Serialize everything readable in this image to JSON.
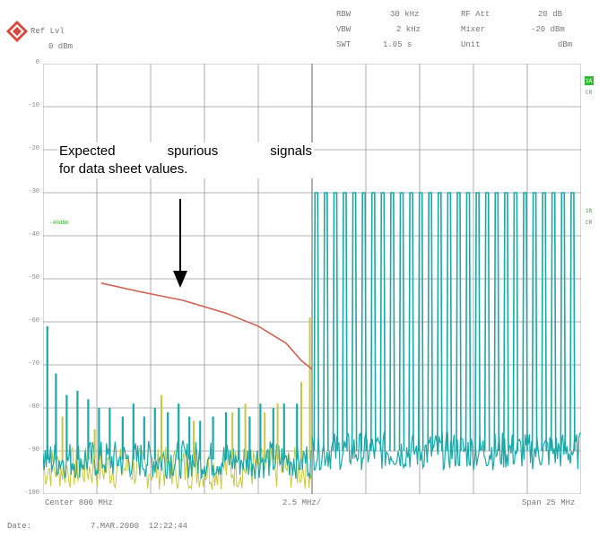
{
  "header": {
    "ref_label": "Ref Lvl",
    "ref_value": "0 dBm",
    "rbw_label": "RBW",
    "rbw_value": "30 kHz",
    "vbw_label": "VBW",
    "vbw_value": "2 kHz",
    "swt_label": "SWT",
    "swt_value": "1.05 s",
    "rfatt_label": "RF Att",
    "rfatt_value": "20 dB",
    "mixer_label": "Mixer",
    "mixer_value": "-20 dBm",
    "unit_label": "Unit",
    "unit_value": "dBm"
  },
  "footer": {
    "center": "Center 800 MHz",
    "div": "2.5 MHz/",
    "span": "Span 25 MHz",
    "date_label": "Date:",
    "date_value": "7.MAR.2000  12:22:44"
  },
  "markers": {
    "left_level": "-40dBm",
    "right_a_top": "1A",
    "right_a_bot": "CR",
    "right_b_top": "1R",
    "right_b_bot": "CR"
  },
  "annotation": {
    "line1_words": [
      "Expected",
      "spurious",
      "signals"
    ],
    "line2": "for data sheet values."
  },
  "colors": {
    "grid": "#9a9a9a",
    "trace_teal": "#1aa8a8",
    "trace_yellow": "#c8c83c",
    "limit_line": "#d06050",
    "marker_green": "#33aa33"
  },
  "chart_data": {
    "type": "line",
    "xlabel": "",
    "ylabel": "",
    "xlim": [
      -12.5,
      12.5
    ],
    "ylim": [
      -100,
      0
    ],
    "y_ticks": [
      0,
      -10,
      -20,
      -30,
      -40,
      -50,
      -60,
      -70,
      -80,
      -90,
      -100
    ],
    "y_tick_labels": [
      "0",
      "-10",
      "-20",
      "-30",
      "-40",
      "-50",
      "-60",
      "-70",
      "-80",
      "-90",
      "-100"
    ],
    "x_unit": "MHz offset from 800 MHz",
    "grid": true,
    "noise_floor": {
      "left": -92,
      "right": -90
    },
    "series": [
      {
        "color": "teal",
        "left_spurs": [
          {
            "x": -12.3,
            "y": -61
          },
          {
            "x": -11.9,
            "y": -72
          },
          {
            "x": -11.4,
            "y": -77
          },
          {
            "x": -10.9,
            "y": -76
          },
          {
            "x": -10.4,
            "y": -78
          },
          {
            "x": -9.9,
            "y": -80
          },
          {
            "x": -9.4,
            "y": -80
          },
          {
            "x": -8.8,
            "y": -82
          },
          {
            "x": -8.3,
            "y": -79
          },
          {
            "x": -7.8,
            "y": -82
          },
          {
            "x": -7.3,
            "y": -80
          },
          {
            "x": -6.7,
            "y": -81
          },
          {
            "x": -6.2,
            "y": -79
          },
          {
            "x": -5.7,
            "y": -82
          },
          {
            "x": -5.2,
            "y": -83
          },
          {
            "x": -4.6,
            "y": -82
          },
          {
            "x": -4.0,
            "y": -81
          },
          {
            "x": -3.4,
            "y": -80
          },
          {
            "x": -2.9,
            "y": -82
          },
          {
            "x": -2.4,
            "y": -79
          },
          {
            "x": -1.8,
            "y": -80
          },
          {
            "x": -1.3,
            "y": -79
          },
          {
            "x": -0.7,
            "y": -79
          }
        ],
        "right_carriers": {
          "count": 28,
          "x_start": 0.2,
          "x_end": 12.1,
          "peak": -30,
          "floor": -90
        }
      },
      {
        "color": "yellow",
        "left_spurs": [
          {
            "x": -11.6,
            "y": -82
          },
          {
            "x": -10.1,
            "y": -85
          },
          {
            "x": -7.0,
            "y": -77
          },
          {
            "x": -5.5,
            "y": -83
          },
          {
            "x": -3.7,
            "y": -81
          },
          {
            "x": -3.1,
            "y": -79
          },
          {
            "x": -2.2,
            "y": -81
          },
          {
            "x": -1.6,
            "y": -79
          },
          {
            "x": -0.5,
            "y": -74
          },
          {
            "x": -0.1,
            "y": -59
          }
        ]
      },
      {
        "color": "red",
        "kind": "limit line",
        "points": [
          {
            "x": -9.8,
            "y": -51
          },
          {
            "x": -8.0,
            "y": -53
          },
          {
            "x": -6.0,
            "y": -55
          },
          {
            "x": -4.0,
            "y": -58
          },
          {
            "x": -2.5,
            "y": -61
          },
          {
            "x": -1.2,
            "y": -65
          },
          {
            "x": -0.5,
            "y": -69
          },
          {
            "x": 0.0,
            "y": -71
          }
        ]
      }
    ]
  }
}
